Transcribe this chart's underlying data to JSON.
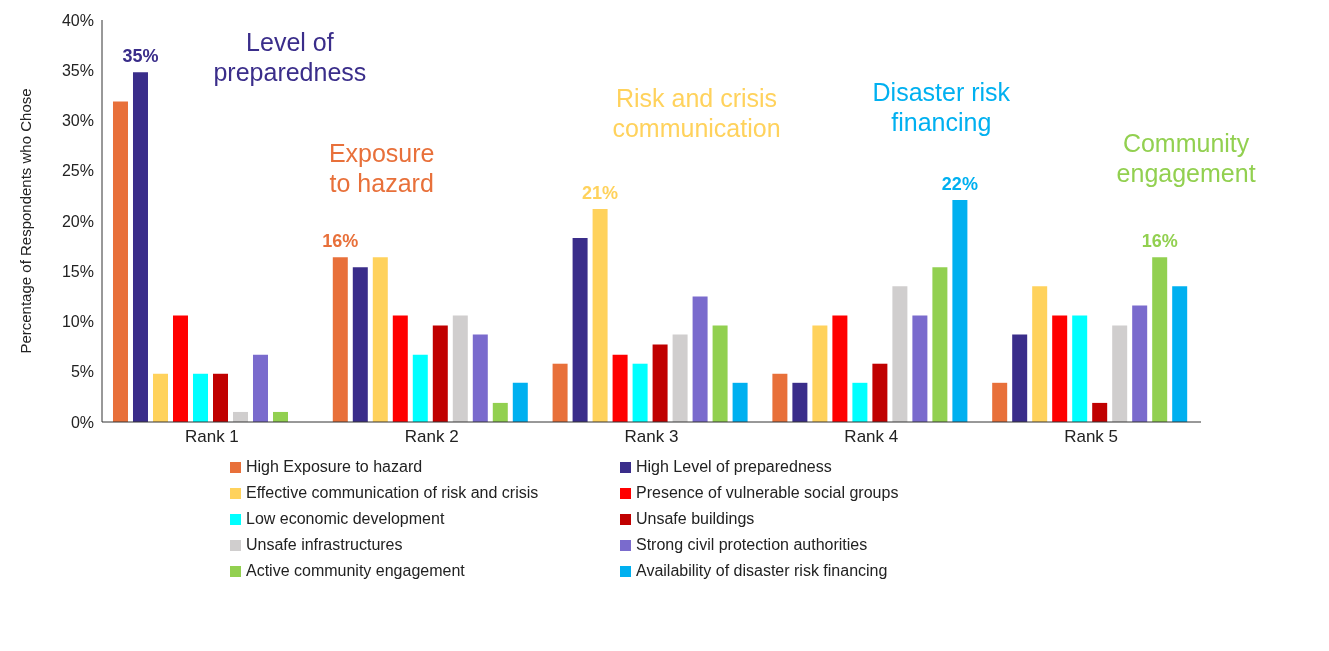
{
  "chart_data": {
    "type": "bar",
    "ylabel": "Percentage of Respondents who Chose",
    "categories": [
      "Rank 1",
      "Rank 2",
      "Rank 3",
      "Rank 4",
      "Rank 5"
    ],
    "series": [
      {
        "name": "High Exposure to hazard",
        "color": "#e8703a",
        "values": [
          31.9,
          16.4,
          5.8,
          4.8,
          3.9
        ],
        "value_labels": [
          null,
          "16%",
          null,
          null,
          null
        ]
      },
      {
        "name": "High Level of preparedness",
        "color": "#3a2d8a",
        "values": [
          34.8,
          15.4,
          18.3,
          3.9,
          8.7
        ],
        "value_labels": [
          "35%",
          null,
          null,
          null,
          null
        ]
      },
      {
        "name": "Effective communication of risk and crisis",
        "color": "#ffd25c",
        "values": [
          4.8,
          16.4,
          21.2,
          9.6,
          13.5
        ],
        "value_labels": [
          null,
          null,
          "21%",
          null,
          null
        ]
      },
      {
        "name": "Presence of vulnerable social groups",
        "color": "#ff0000",
        "values": [
          10.6,
          10.6,
          6.7,
          10.6,
          10.6
        ]
      },
      {
        "name": "Low economic development",
        "color": "#00ffff",
        "values": [
          4.8,
          6.7,
          5.8,
          3.9,
          10.6
        ]
      },
      {
        "name": "Unsafe buildings",
        "color": "#c00000",
        "values": [
          4.8,
          9.6,
          7.7,
          5.8,
          1.9
        ]
      },
      {
        "name": "Unsafe infrastructures",
        "color": "#d0cece",
        "values": [
          1.0,
          10.6,
          8.7,
          13.5,
          9.6
        ]
      },
      {
        "name": "Strong civil protection authorities",
        "color": "#7a6bcd",
        "values": [
          6.7,
          8.7,
          12.5,
          10.6,
          11.6
        ]
      },
      {
        "name": "Active community engagement",
        "color": "#92d050",
        "values": [
          1.0,
          1.9,
          9.6,
          15.4,
          16.4
        ],
        "value_labels": [
          null,
          null,
          null,
          null,
          "16%"
        ]
      },
      {
        "name": "Availability of disaster risk financing",
        "color": "#00b0f0",
        "values": [
          null,
          3.9,
          3.9,
          22.1,
          13.5
        ],
        "value_labels": [
          null,
          null,
          null,
          "22%",
          null
        ]
      }
    ],
    "ylim": [
      0,
      40
    ],
    "yticks": [
      {
        "value": 0,
        "label": "0%"
      },
      {
        "value": 5,
        "label": "5%"
      },
      {
        "value": 10,
        "label": "10%"
      },
      {
        "value": 15,
        "label": "15%"
      },
      {
        "value": 20,
        "label": "20%"
      },
      {
        "value": 25,
        "label": "25%"
      },
      {
        "value": 30,
        "label": "30%"
      },
      {
        "value": 35,
        "label": "35%"
      },
      {
        "value": 40,
        "label": "40%"
      }
    ],
    "annotations": [
      "Level of preparedness",
      "Exposure to hazard",
      "Risk and crisis communication",
      "Disaster risk financing",
      "Community engagement"
    ],
    "grid": false,
    "legend": "bottom"
  }
}
